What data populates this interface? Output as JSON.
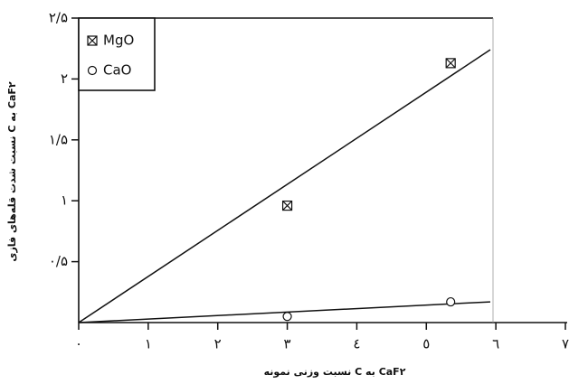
{
  "chart_data": {
    "type": "scatter",
    "x_label": "نسبت وزنی نمونه C به CaF۲",
    "y_label": "نسبت شدت قله‌های فازی C به CaF۲",
    "series": [
      {
        "name": "MgO",
        "marker": "square-x",
        "color": "#111",
        "x": [
          3,
          5.35
        ],
        "values": [
          0.96,
          2.13
        ]
      },
      {
        "name": "CaO",
        "marker": "circle",
        "color": "#111",
        "x": [
          3,
          5.35
        ],
        "values": [
          0.05,
          0.17
        ]
      }
    ],
    "lines": [
      {
        "x": [
          0,
          5.92
        ],
        "y": [
          0,
          2.24
        ]
      },
      {
        "x": [
          0,
          5.92
        ],
        "y": [
          0,
          0.17
        ]
      }
    ],
    "xlim": [
      0,
      7
    ],
    "ylim": [
      0,
      2.5
    ],
    "xticks": [
      {
        "value": 0,
        "label": "۰"
      },
      {
        "value": 1,
        "label": "۱"
      },
      {
        "value": 2,
        "label": "۲"
      },
      {
        "value": 3,
        "label": "۳"
      },
      {
        "value": 4,
        "label": "٤"
      },
      {
        "value": 5,
        "label": "٥"
      },
      {
        "value": 6,
        "label": "٦"
      },
      {
        "value": 7,
        "label": "٧"
      }
    ],
    "yticks": [
      {
        "value": 0.5,
        "label": "۰/۵"
      },
      {
        "value": 1,
        "label": "۱"
      },
      {
        "value": 1.5,
        "label": "۱/۵"
      },
      {
        "value": 2,
        "label": "۲"
      },
      {
        "value": 2.5,
        "label": "۲/۵"
      }
    ]
  }
}
